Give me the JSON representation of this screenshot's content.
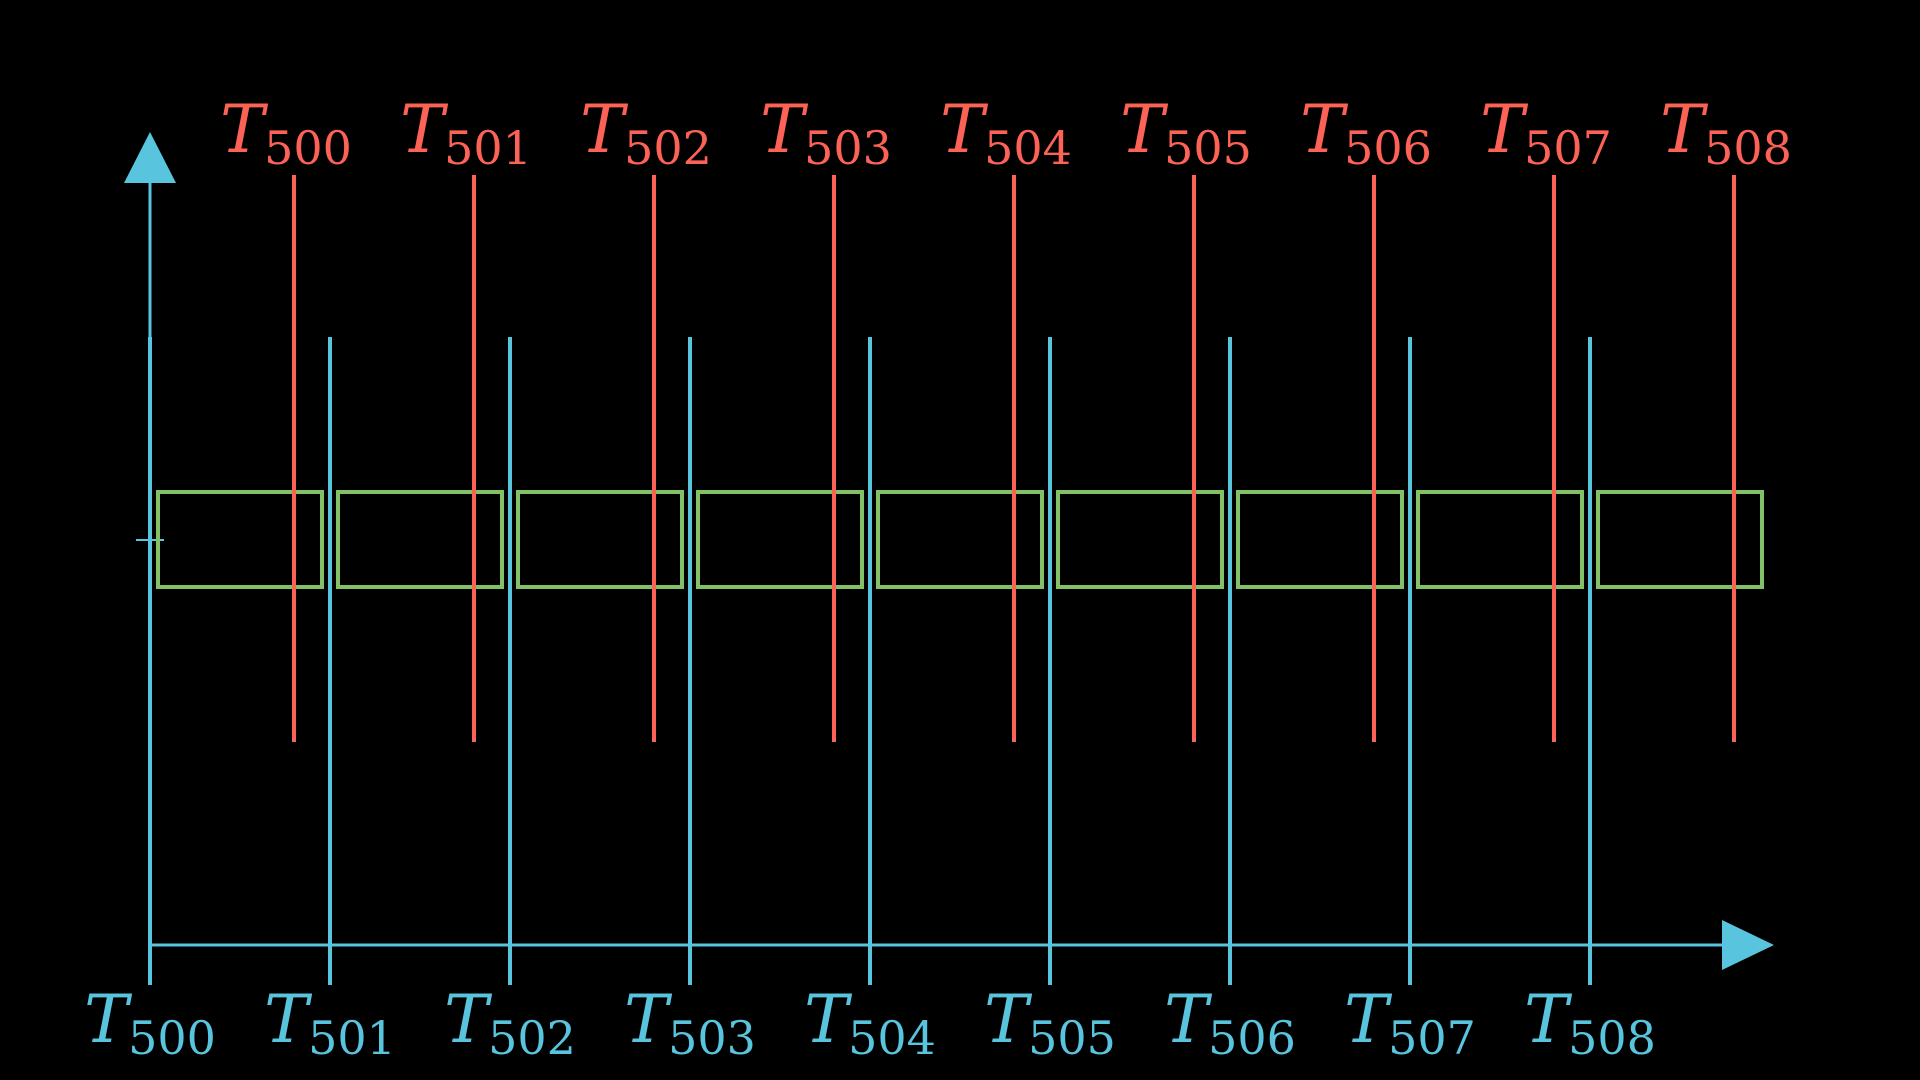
{
  "colors": {
    "background": "#000000",
    "axis": "#58C4DD",
    "red": "#FC6255",
    "green": "#83C167"
  },
  "red_markers": [
    {
      "symbol": "T",
      "subscript": "500"
    },
    {
      "symbol": "T",
      "subscript": "501"
    },
    {
      "symbol": "T",
      "subscript": "502"
    },
    {
      "symbol": "T",
      "subscript": "503"
    },
    {
      "symbol": "T",
      "subscript": "504"
    },
    {
      "symbol": "T",
      "subscript": "505"
    },
    {
      "symbol": "T",
      "subscript": "506"
    },
    {
      "symbol": "T",
      "subscript": "507"
    },
    {
      "symbol": "T",
      "subscript": "508"
    }
  ],
  "blue_markers": [
    {
      "symbol": "T",
      "subscript": "500"
    },
    {
      "symbol": "T",
      "subscript": "501"
    },
    {
      "symbol": "T",
      "subscript": "502"
    },
    {
      "symbol": "T",
      "subscript": "503"
    },
    {
      "symbol": "T",
      "subscript": "504"
    },
    {
      "symbol": "T",
      "subscript": "505"
    },
    {
      "symbol": "T",
      "subscript": "506"
    },
    {
      "symbol": "T",
      "subscript": "507"
    },
    {
      "symbol": "T",
      "subscript": "508"
    }
  ]
}
